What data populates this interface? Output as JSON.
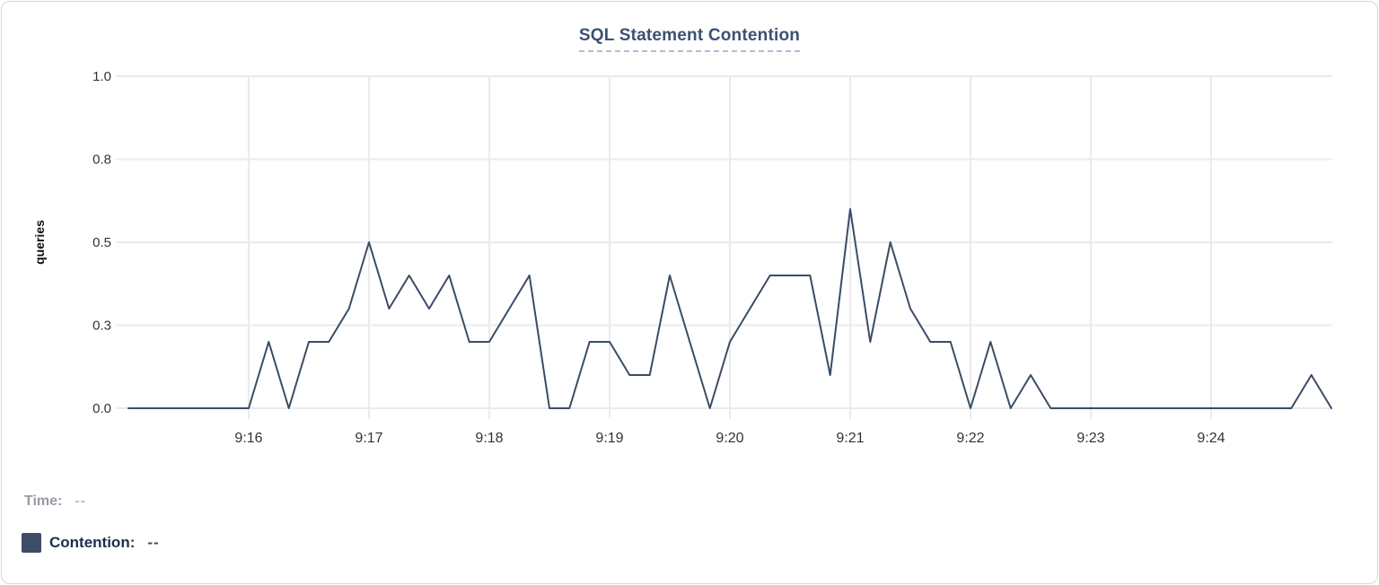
{
  "title": "SQL Statement Contention",
  "chart_data": {
    "type": "line",
    "title": "SQL Statement Contention",
    "xlabel": "",
    "ylabel": "queries",
    "ylim": [
      0,
      1.0
    ],
    "grid": true,
    "legend_position": "bottom-left",
    "y_ticks": [
      {
        "value": 0,
        "label": "0.0"
      },
      {
        "value": 0.25,
        "label": "0.3"
      },
      {
        "value": 0.5,
        "label": "0.5"
      },
      {
        "value": 0.75,
        "label": "0.8"
      },
      {
        "value": 1.0,
        "label": "1.0"
      }
    ],
    "x_ticks": [
      "9:16",
      "9:17",
      "9:18",
      "9:19",
      "9:20",
      "9:21",
      "9:22",
      "9:23",
      "9:24"
    ],
    "x_range": [
      "9:15:00",
      "9:25:00"
    ],
    "sample_interval_seconds": 10,
    "series": [
      {
        "name": "Contention",
        "color": "#3a4c66",
        "times": [
          "9:15:00",
          "9:15:10",
          "9:15:20",
          "9:15:30",
          "9:15:40",
          "9:15:50",
          "9:16:00",
          "9:16:10",
          "9:16:20",
          "9:16:30",
          "9:16:40",
          "9:16:50",
          "9:17:00",
          "9:17:10",
          "9:17:20",
          "9:17:30",
          "9:17:40",
          "9:17:50",
          "9:18:00",
          "9:18:10",
          "9:18:20",
          "9:18:30",
          "9:18:40",
          "9:18:50",
          "9:19:00",
          "9:19:10",
          "9:19:20",
          "9:19:30",
          "9:19:40",
          "9:19:50",
          "9:20:00",
          "9:20:10",
          "9:20:20",
          "9:20:30",
          "9:20:40",
          "9:20:50",
          "9:21:00",
          "9:21:10",
          "9:21:20",
          "9:21:30",
          "9:21:40",
          "9:21:50",
          "9:22:00",
          "9:22:10",
          "9:22:20",
          "9:22:30",
          "9:22:40",
          "9:22:50",
          "9:23:00",
          "9:23:10",
          "9:23:20",
          "9:23:30",
          "9:23:40",
          "9:23:50",
          "9:24:00",
          "9:24:10",
          "9:24:20",
          "9:24:30",
          "9:24:40",
          "9:24:50",
          "9:25:00"
        ],
        "values": [
          0,
          0,
          0,
          0,
          0,
          0,
          0,
          0.2,
          0,
          0.2,
          0.2,
          0.3,
          0.5,
          0.3,
          0.4,
          0.3,
          0.4,
          0.2,
          0.2,
          0.3,
          0.4,
          0,
          0,
          0.2,
          0.2,
          0.1,
          0.1,
          0.4,
          0.2,
          0,
          0.2,
          0.3,
          0.4,
          0.4,
          0.4,
          0.1,
          0.6,
          0.2,
          0.5,
          0.3,
          0.2,
          0.2,
          0,
          0.2,
          0,
          0.1,
          0,
          0,
          0,
          0,
          0,
          0,
          0,
          0,
          0,
          0,
          0,
          0,
          0,
          0.1,
          0
        ]
      }
    ]
  },
  "legend": {
    "time_label": "Time:",
    "time_value": "--",
    "contention_label": "Contention:",
    "contention_value": "--",
    "swatch_color": "#3e4d66"
  },
  "colors": {
    "title": "#3c5173",
    "title_underline": "#b4bcd4",
    "line": "#3a4c66",
    "gridline": "#ebebeb",
    "tick_text": "#333333",
    "axis_label_text": "#111111"
  }
}
